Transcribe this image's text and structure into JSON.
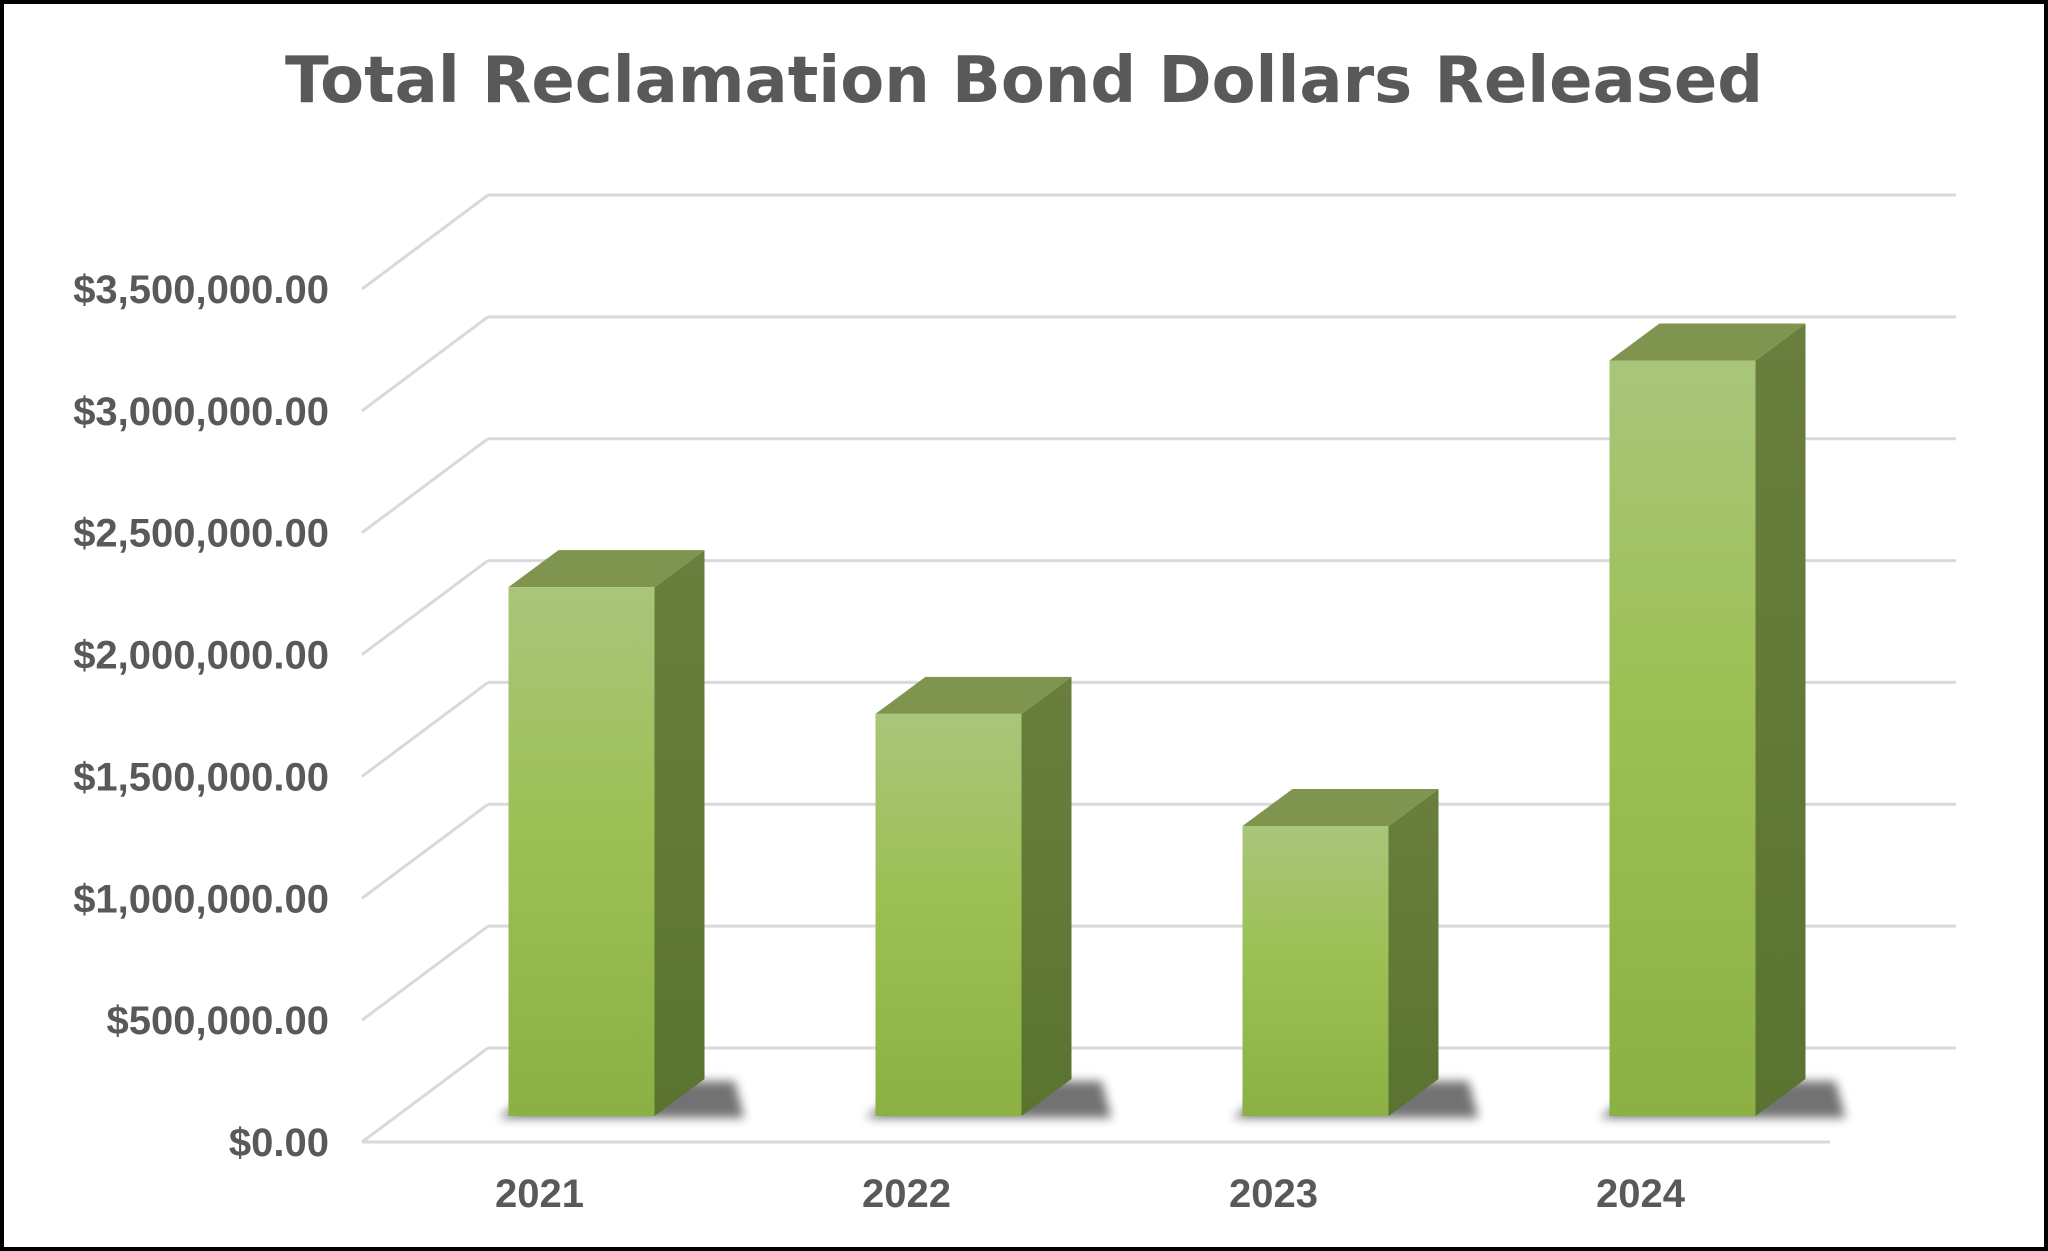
{
  "chart_data": {
    "type": "bar",
    "title": "Total Reclamation Bond Dollars Released",
    "categories": [
      "2021",
      "2022",
      "2023",
      "2024"
    ],
    "values": [
      2170000,
      1650000,
      1190000,
      3100000
    ],
    "ylim": [
      0,
      3500000
    ],
    "yticks": [
      "$0.00",
      "$500,000.00",
      "$1,000,000.00",
      "$1,500,000.00",
      "$2,000,000.00",
      "$2,500,000.00",
      "$3,000,000.00",
      "$3,500,000.00"
    ],
    "grid": true,
    "style": "3d-column",
    "colors": {
      "bar_front_top": "#a9c57a",
      "bar_front_bottom": "#8bb043",
      "bar_side": "#627a33",
      "bar_top": "#7f954f",
      "grid": "#d9d9d9",
      "text": "#595959"
    }
  }
}
